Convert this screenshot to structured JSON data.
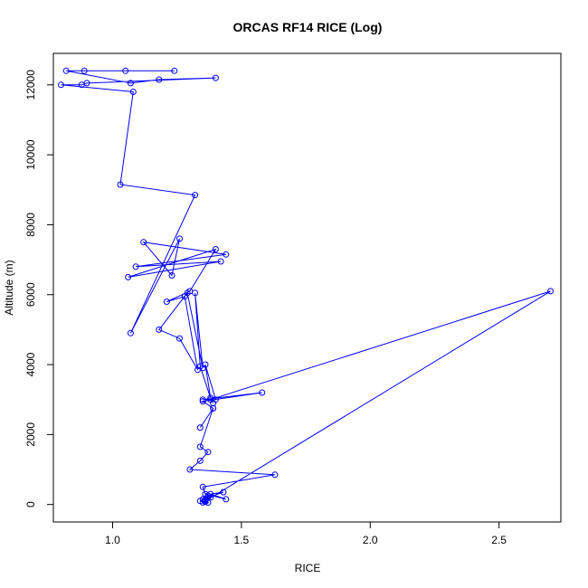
{
  "chart_data": {
    "type": "line",
    "title": "ORCAS RF14 RICE (Log)",
    "xlabel": "RICE",
    "ylabel": "Altitude (m)",
    "xlim": [
      0.77,
      2.74
    ],
    "ylim": [
      -500,
      12900
    ],
    "xticks": [
      1.0,
      1.5,
      2.0,
      2.5
    ],
    "xtick_labels": [
      "1.0",
      "1.5",
      "2.0",
      "2.5"
    ],
    "yticks": [
      0,
      2000,
      4000,
      6000,
      8000,
      10000,
      12000
    ],
    "ytick_labels": [
      "0",
      "2000",
      "4000",
      "6000",
      "8000",
      "10000",
      "12000"
    ],
    "grid": false,
    "legend": "none",
    "markers": "open-circle",
    "colors": {
      "series": "#0000ff",
      "axes": "#000000"
    },
    "series": [
      {
        "x": [
          1.24,
          1.05,
          0.89,
          0.82,
          1.07,
          1.18,
          1.4,
          0.9,
          0.88,
          0.8,
          1.08,
          1.03,
          1.32,
          1.07,
          1.26,
          1.23,
          1.12,
          1.44,
          1.09,
          1.42,
          1.06,
          1.4,
          1.3,
          1.21,
          1.28,
          1.33,
          1.26,
          1.18,
          1.29,
          1.35,
          1.32,
          1.34,
          1.38,
          1.36,
          1.4,
          1.35,
          1.58,
          1.35,
          1.39,
          1.34,
          1.39,
          1.34,
          1.37,
          1.34,
          1.3,
          1.63,
          1.35,
          1.36,
          1.44,
          1.38,
          1.43,
          1.37,
          1.36,
          1.38,
          1.34,
          1.36,
          1.37,
          1.35,
          1.35,
          1.37,
          1.36,
          2.7,
          1.38,
          1.39
        ],
        "y": [
          12400,
          12400,
          12400,
          12400,
          12050,
          12150,
          12200,
          12050,
          12000,
          12000,
          11800,
          9150,
          8850,
          4900,
          7600,
          6550,
          7500,
          7150,
          6800,
          6950,
          6500,
          7300,
          6100,
          5800,
          5950,
          3850,
          4750,
          5000,
          6050,
          3900,
          6050,
          3950,
          3050,
          4000,
          3000,
          3000,
          3200,
          2950,
          2750,
          2200,
          2750,
          1650,
          1500,
          1250,
          1000,
          850,
          500,
          300,
          150,
          300,
          350,
          200,
          150,
          200,
          100,
          80,
          250,
          150,
          60,
          50,
          100,
          6100,
          3000,
          2900
        ]
      }
    ]
  }
}
